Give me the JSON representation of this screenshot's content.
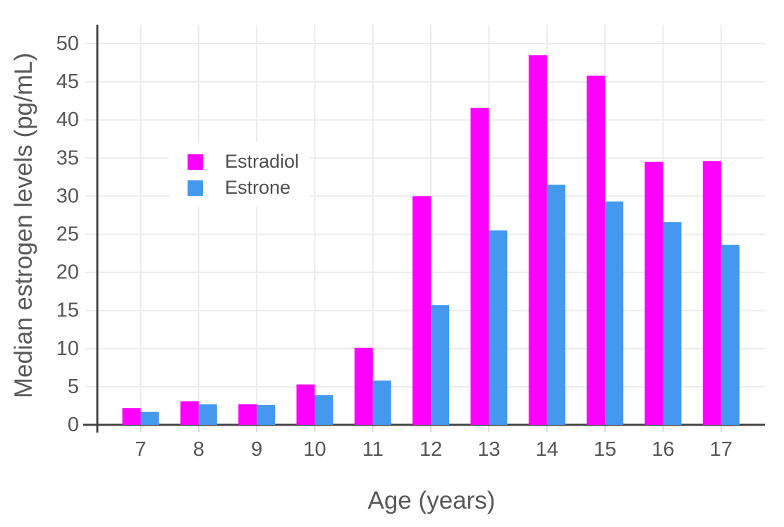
{
  "figure": {
    "background": "#FFFFFF"
  },
  "chart_data": {
    "type": "bar",
    "mode": "grouped",
    "title": "",
    "xlabel": "Age (years)",
    "ylabel": "Median estrogen levels (pg/mL)",
    "categories": [
      "7",
      "8",
      "9",
      "10",
      "11",
      "12",
      "13",
      "14",
      "15",
      "16",
      "17"
    ],
    "series": [
      {
        "name": "Estradiol",
        "color": "#FF00FF",
        "values": [
          2.2,
          3.1,
          2.7,
          5.3,
          10.1,
          30.0,
          41.6,
          48.5,
          45.8,
          34.5,
          34.6
        ]
      },
      {
        "name": "Estrone",
        "color": "#4499EE",
        "values": [
          1.7,
          2.7,
          2.6,
          3.9,
          5.8,
          15.7,
          25.5,
          31.5,
          29.3,
          26.6,
          23.6
        ]
      }
    ],
    "ylim": [
      0,
      52.5
    ],
    "yticks": [
      0,
      5,
      10,
      15,
      20,
      25,
      30,
      35,
      40,
      45,
      50
    ],
    "grid": true,
    "grid_color": "#EBEBEB",
    "tick_mark_color": "#DBDBDB",
    "axis_line_color": "#444444",
    "tick_label_color": "#565656",
    "legend_position": "inside-top-left",
    "legend_background": "#FFFFFF"
  }
}
